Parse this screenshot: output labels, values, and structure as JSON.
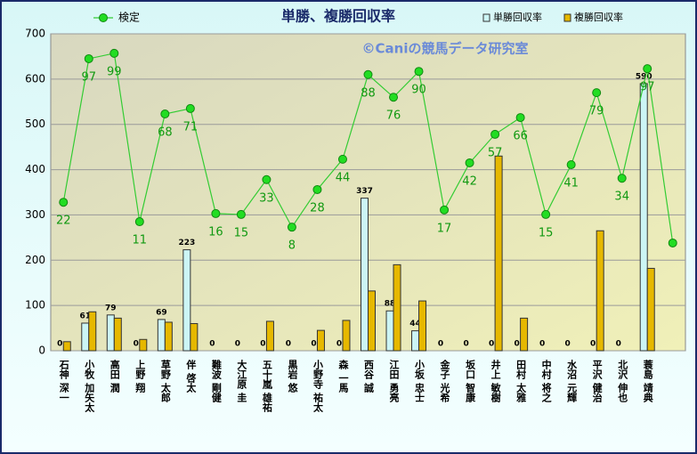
{
  "chart_data": {
    "type": "bar-line",
    "title": "単勝、複勝回収率",
    "watermark": "©Caniの競馬データ研究室",
    "categories": [
      "石神 深一",
      "小牧 加矢太",
      "高田 潤",
      "上野 翔",
      "草野 太郎",
      "伴 啓太",
      "難波 剛健",
      "大江原 圭",
      "五十嵐 雄祐",
      "黒岩 悠",
      "小野寺 祐太",
      "森 一馬",
      "西谷 誠",
      "江田 勇亮",
      "小坂 忠士",
      "金子 光希",
      "坂口 智康",
      "井上 敏樹",
      "田村 太雅",
      "中村 将之",
      "水沼 元輝",
      "平沢 健治",
      "北沢 伸也",
      "蓑島 靖典",
      null
    ],
    "series": [
      {
        "name": "単勝回収率",
        "kind": "bar",
        "color": "#ccf5f5",
        "values": [
          0,
          61,
          79,
          0,
          69,
          223,
          0,
          0,
          0,
          0,
          0,
          0,
          337,
          88,
          44,
          0,
          0,
          0,
          0,
          0,
          0,
          0,
          0,
          590,
          null
        ]
      },
      {
        "name": "複勝回収率",
        "kind": "bar",
        "color": "#e6b800",
        "values": [
          20,
          86,
          72,
          25,
          63,
          60,
          0,
          0,
          65,
          0,
          45,
          67,
          132,
          190,
          110,
          0,
          0,
          430,
          72,
          0,
          0,
          265,
          0,
          182,
          null
        ]
      },
      {
        "name": "検定",
        "kind": "line",
        "color": "#33cc33",
        "values": [
          328,
          645,
          657,
          285,
          523,
          535,
          303,
          301,
          378,
          273,
          356,
          423,
          610,
          560,
          617,
          311,
          415,
          478,
          515,
          301,
          411,
          570,
          381,
          623,
          238
        ],
        "data_labels": [
          22,
          97,
          99,
          11,
          68,
          71,
          16,
          15,
          33,
          8,
          28,
          44,
          88,
          76,
          90,
          17,
          42,
          57,
          66,
          15,
          41,
          79,
          34,
          97,
          null
        ]
      }
    ],
    "ylim": [
      0,
      700
    ],
    "yticks": [
      0,
      100,
      200,
      300,
      400,
      500,
      600,
      700
    ],
    "grid": true
  }
}
